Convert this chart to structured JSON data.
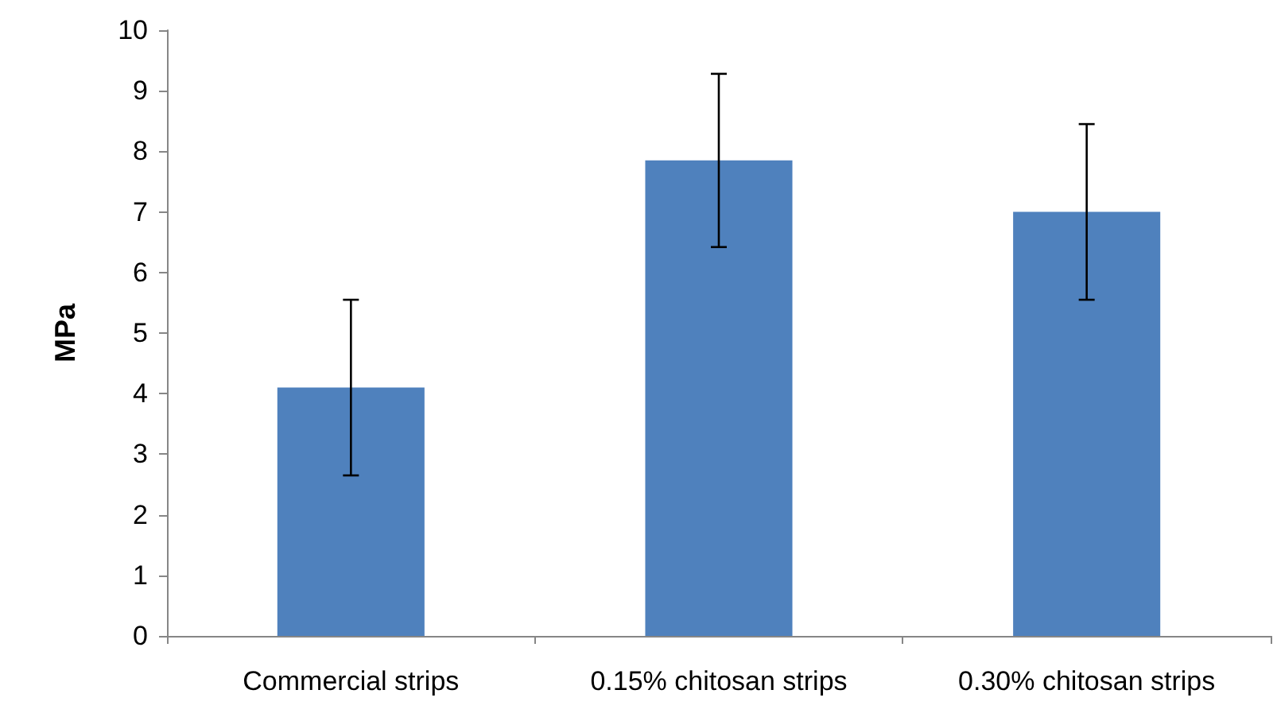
{
  "chart_data": {
    "type": "bar",
    "ylabel": "MPa",
    "categories": [
      "Commercial strips",
      "0.15% chitosan strips",
      "0.30% chitosan strips"
    ],
    "values": [
      4.1,
      7.85,
      7.0
    ],
    "color": "#4f81bd",
    "errors": [
      1.45,
      1.43,
      1.45
    ],
    "ylim": [
      0,
      10
    ],
    "yticks": [
      0,
      1,
      2,
      3,
      4,
      5,
      6,
      7,
      8,
      9,
      10
    ],
    "grid": false
  }
}
